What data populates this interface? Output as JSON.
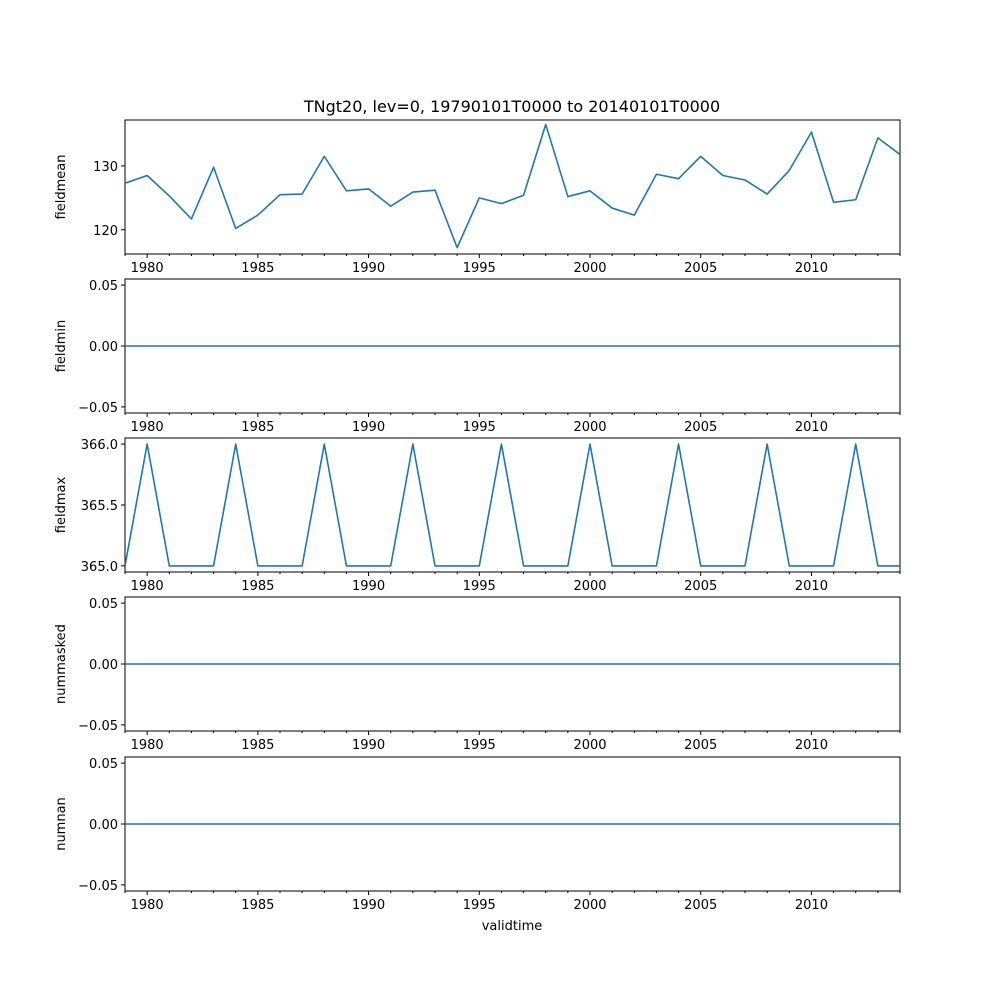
{
  "title": "TNgt20, lev=0, 19790101T0000 to 20140101T0000",
  "xlabel": "validtime",
  "colors": {
    "line": "#1f77b4",
    "axes": "#000000",
    "background": "#ffffff"
  },
  "chart_data": [
    {
      "type": "line",
      "ylabel": "fieldmean",
      "xlim": [
        1979,
        2014
      ],
      "ylim": [
        116.2,
        137.2
      ],
      "yticks": [
        120,
        130
      ],
      "ytick_labels": [
        "120",
        "130"
      ],
      "xticks": [
        1980,
        1985,
        1990,
        1995,
        2000,
        2005,
        2010
      ],
      "xtick_labels": [
        "1980",
        "1985",
        "1990",
        "1995",
        "2000",
        "2005",
        "2010"
      ],
      "x": [
        1979,
        1980,
        1981,
        1982,
        1983,
        1984,
        1985,
        1986,
        1987,
        1988,
        1989,
        1990,
        1991,
        1992,
        1993,
        1994,
        1995,
        1996,
        1997,
        1998,
        1999,
        2000,
        2001,
        2002,
        2003,
        2004,
        2005,
        2006,
        2007,
        2008,
        2009,
        2010,
        2011,
        2012,
        2013,
        2014
      ],
      "values": [
        127.3,
        128.5,
        125.3,
        121.7,
        129.8,
        120.2,
        122.3,
        125.5,
        125.6,
        131.5,
        126.1,
        126.4,
        123.7,
        125.9,
        126.2,
        117.2,
        125.0,
        124.1,
        125.4,
        136.5,
        125.2,
        126.1,
        123.4,
        122.3,
        128.7,
        128.0,
        131.5,
        128.5,
        127.8,
        125.6,
        129.3,
        135.3,
        124.3,
        124.7,
        134.4,
        131.8
      ]
    },
    {
      "type": "line",
      "ylabel": "fieldmin",
      "xlim": [
        1979,
        2014
      ],
      "ylim": [
        -0.055,
        0.055
      ],
      "yticks": [
        -0.05,
        0.0,
        0.05
      ],
      "ytick_labels": [
        "−0.05",
        "0.00",
        "0.05"
      ],
      "xticks": [
        1980,
        1985,
        1990,
        1995,
        2000,
        2005,
        2010
      ],
      "xtick_labels": [
        "1980",
        "1985",
        "1990",
        "1995",
        "2000",
        "2005",
        "2010"
      ],
      "x": [
        1979,
        1980,
        1981,
        1982,
        1983,
        1984,
        1985,
        1986,
        1987,
        1988,
        1989,
        1990,
        1991,
        1992,
        1993,
        1994,
        1995,
        1996,
        1997,
        1998,
        1999,
        2000,
        2001,
        2002,
        2003,
        2004,
        2005,
        2006,
        2007,
        2008,
        2009,
        2010,
        2011,
        2012,
        2013,
        2014
      ],
      "values": [
        0,
        0,
        0,
        0,
        0,
        0,
        0,
        0,
        0,
        0,
        0,
        0,
        0,
        0,
        0,
        0,
        0,
        0,
        0,
        0,
        0,
        0,
        0,
        0,
        0,
        0,
        0,
        0,
        0,
        0,
        0,
        0,
        0,
        0,
        0,
        0
      ]
    },
    {
      "type": "line",
      "ylabel": "fieldmax",
      "xlim": [
        1979,
        2014
      ],
      "ylim": [
        364.95,
        366.05
      ],
      "yticks": [
        365.0,
        365.5,
        366.0
      ],
      "ytick_labels": [
        "365.0",
        "365.5",
        "366.0"
      ],
      "xticks": [
        1980,
        1985,
        1990,
        1995,
        2000,
        2005,
        2010
      ],
      "xtick_labels": [
        "1980",
        "1985",
        "1990",
        "1995",
        "2000",
        "2005",
        "2010"
      ],
      "x": [
        1979,
        1980,
        1981,
        1982,
        1983,
        1984,
        1985,
        1986,
        1987,
        1988,
        1989,
        1990,
        1991,
        1992,
        1993,
        1994,
        1995,
        1996,
        1997,
        1998,
        1999,
        2000,
        2001,
        2002,
        2003,
        2004,
        2005,
        2006,
        2007,
        2008,
        2009,
        2010,
        2011,
        2012,
        2013,
        2014
      ],
      "values": [
        365,
        366,
        365,
        365,
        365,
        366,
        365,
        365,
        365,
        366,
        365,
        365,
        365,
        366,
        365,
        365,
        365,
        366,
        365,
        365,
        365,
        366,
        365,
        365,
        365,
        366,
        365,
        365,
        365,
        366,
        365,
        365,
        365,
        366,
        365,
        365
      ]
    },
    {
      "type": "line",
      "ylabel": "nummasked",
      "xlim": [
        1979,
        2014
      ],
      "ylim": [
        -0.055,
        0.055
      ],
      "yticks": [
        -0.05,
        0.0,
        0.05
      ],
      "ytick_labels": [
        "−0.05",
        "0.00",
        "0.05"
      ],
      "xticks": [
        1980,
        1985,
        1990,
        1995,
        2000,
        2005,
        2010
      ],
      "xtick_labels": [
        "1980",
        "1985",
        "1990",
        "1995",
        "2000",
        "2005",
        "2010"
      ],
      "x": [
        1979,
        1980,
        1981,
        1982,
        1983,
        1984,
        1985,
        1986,
        1987,
        1988,
        1989,
        1990,
        1991,
        1992,
        1993,
        1994,
        1995,
        1996,
        1997,
        1998,
        1999,
        2000,
        2001,
        2002,
        2003,
        2004,
        2005,
        2006,
        2007,
        2008,
        2009,
        2010,
        2011,
        2012,
        2013,
        2014
      ],
      "values": [
        0,
        0,
        0,
        0,
        0,
        0,
        0,
        0,
        0,
        0,
        0,
        0,
        0,
        0,
        0,
        0,
        0,
        0,
        0,
        0,
        0,
        0,
        0,
        0,
        0,
        0,
        0,
        0,
        0,
        0,
        0,
        0,
        0,
        0,
        0,
        0
      ]
    },
    {
      "type": "line",
      "ylabel": "numnan",
      "xlim": [
        1979,
        2014
      ],
      "ylim": [
        -0.055,
        0.055
      ],
      "yticks": [
        -0.05,
        0.0,
        0.05
      ],
      "ytick_labels": [
        "−0.05",
        "0.00",
        "0.05"
      ],
      "xticks": [
        1980,
        1985,
        1990,
        1995,
        2000,
        2005,
        2010
      ],
      "xtick_labels": [
        "1980",
        "1985",
        "1990",
        "1995",
        "2000",
        "2005",
        "2010"
      ],
      "x": [
        1979,
        1980,
        1981,
        1982,
        1983,
        1984,
        1985,
        1986,
        1987,
        1988,
        1989,
        1990,
        1991,
        1992,
        1993,
        1994,
        1995,
        1996,
        1997,
        1998,
        1999,
        2000,
        2001,
        2002,
        2003,
        2004,
        2005,
        2006,
        2007,
        2008,
        2009,
        2010,
        2011,
        2012,
        2013,
        2014
      ],
      "values": [
        0,
        0,
        0,
        0,
        0,
        0,
        0,
        0,
        0,
        0,
        0,
        0,
        0,
        0,
        0,
        0,
        0,
        0,
        0,
        0,
        0,
        0,
        0,
        0,
        0,
        0,
        0,
        0,
        0,
        0,
        0,
        0,
        0,
        0,
        0,
        0
      ]
    }
  ]
}
